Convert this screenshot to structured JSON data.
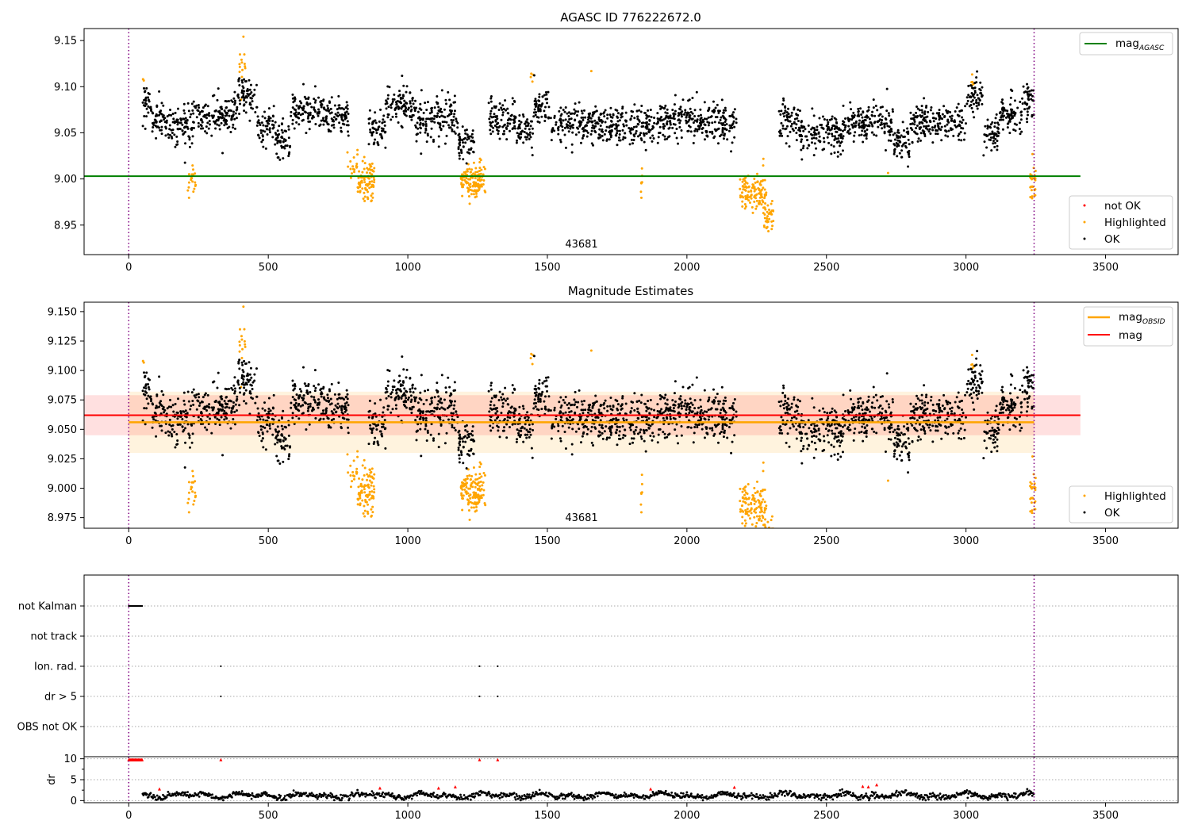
{
  "chart_data": [
    {
      "type": "scatter",
      "title": "AGASC ID 776222672.0",
      "xlim": [
        -160,
        3760
      ],
      "ylim": [
        8.918,
        9.163
      ],
      "xticks": [
        0,
        500,
        1000,
        1500,
        2000,
        2500,
        3000,
        3500
      ],
      "yticks": [
        8.95,
        9.0,
        9.05,
        9.1,
        9.15
      ],
      "vlines": [
        0,
        3244
      ],
      "annotation": {
        "text": "43681",
        "x": 1620,
        "y": 8.925
      },
      "reference_lines": [
        {
          "name": "magAGASC",
          "y": 9.003,
          "x": [
            -160,
            3410
          ],
          "color": "#008000"
        }
      ],
      "legend_upper": {
        "label_main": "mag",
        "label_sub": "AGASC"
      },
      "series": [
        {
          "name": "not OK",
          "color": "#ff0000"
        },
        {
          "name": "Highlighted",
          "color": "#ffa500"
        },
        {
          "name": "OK",
          "color": "#000000"
        }
      ]
    },
    {
      "type": "scatter",
      "title": "Magnitude Estimates",
      "xlim": [
        -160,
        3760
      ],
      "ylim": [
        8.966,
        9.158
      ],
      "xticks": [
        0,
        500,
        1000,
        1500,
        2000,
        2500,
        3000,
        3500
      ],
      "yticks": [
        8.975,
        9.0,
        9.025,
        9.05,
        9.075,
        9.1,
        9.125,
        9.15
      ],
      "vlines": [
        0,
        3244
      ],
      "annotation": {
        "text": "43681",
        "x": 1620,
        "y": 8.971
      },
      "bands": [
        {
          "y0": 9.03,
          "y1": 9.082,
          "x": [
            0,
            3244
          ],
          "color": "#ffa500",
          "opacity": 0.13
        },
        {
          "y0": 9.045,
          "y1": 9.079,
          "x": [
            -160,
            3410
          ],
          "color": "#ff0000",
          "opacity": 0.12
        }
      ],
      "reference_lines": [
        {
          "name": "magOBSID",
          "y": 9.056,
          "x": [
            0,
            3244
          ],
          "color": "#ffa500"
        },
        {
          "name": "mag",
          "y": 9.062,
          "x": [
            -160,
            3410
          ],
          "color": "#ff0000"
        }
      ],
      "legend_upper": {
        "label_main": "mag",
        "label_sub": "OBSID",
        "label_second": "mag"
      },
      "series": [
        {
          "name": "Highlighted",
          "color": "#ffa500"
        },
        {
          "name": "OK",
          "color": "#000000"
        }
      ]
    },
    {
      "type": "scatter",
      "xlim": [
        -160,
        3760
      ],
      "xticks": [
        0,
        500,
        1000,
        1500,
        2000,
        2500,
        3000,
        3500
      ],
      "vlines": [
        0,
        3244
      ],
      "flag_rows": [
        "not Kalman",
        "not track",
        "Ion. rad.",
        "dr > 5",
        "OBS not OK"
      ],
      "flag_points": [
        {
          "row": "not Kalman",
          "x_start": 0,
          "x_end": 50
        },
        {
          "row": "Ion. rad.",
          "x": [
            330,
            1257,
            1322
          ]
        },
        {
          "row": "dr > 5",
          "x": [
            330,
            1257,
            1322
          ]
        }
      ],
      "dr_ylabel": "dr",
      "dr_ylim": [
        -0.5,
        10.5
      ],
      "dr_yticks": [
        0,
        5,
        10
      ],
      "dr_red_points": [
        {
          "x": 330,
          "y": 9.8
        },
        {
          "x": 1257,
          "y": 9.8
        },
        {
          "x": 1322,
          "y": 9.8
        },
        {
          "x": 110,
          "y": 2.8
        },
        {
          "x": 900,
          "y": 3.0
        },
        {
          "x": 1110,
          "y": 3.0
        },
        {
          "x": 1170,
          "y": 3.3
        },
        {
          "x": 1870,
          "y": 2.8
        },
        {
          "x": 2170,
          "y": 3.2
        },
        {
          "x": 2630,
          "y": 3.4
        },
        {
          "x": 2650,
          "y": 3.3
        },
        {
          "x": 2680,
          "y": 3.8
        }
      ]
    }
  ]
}
